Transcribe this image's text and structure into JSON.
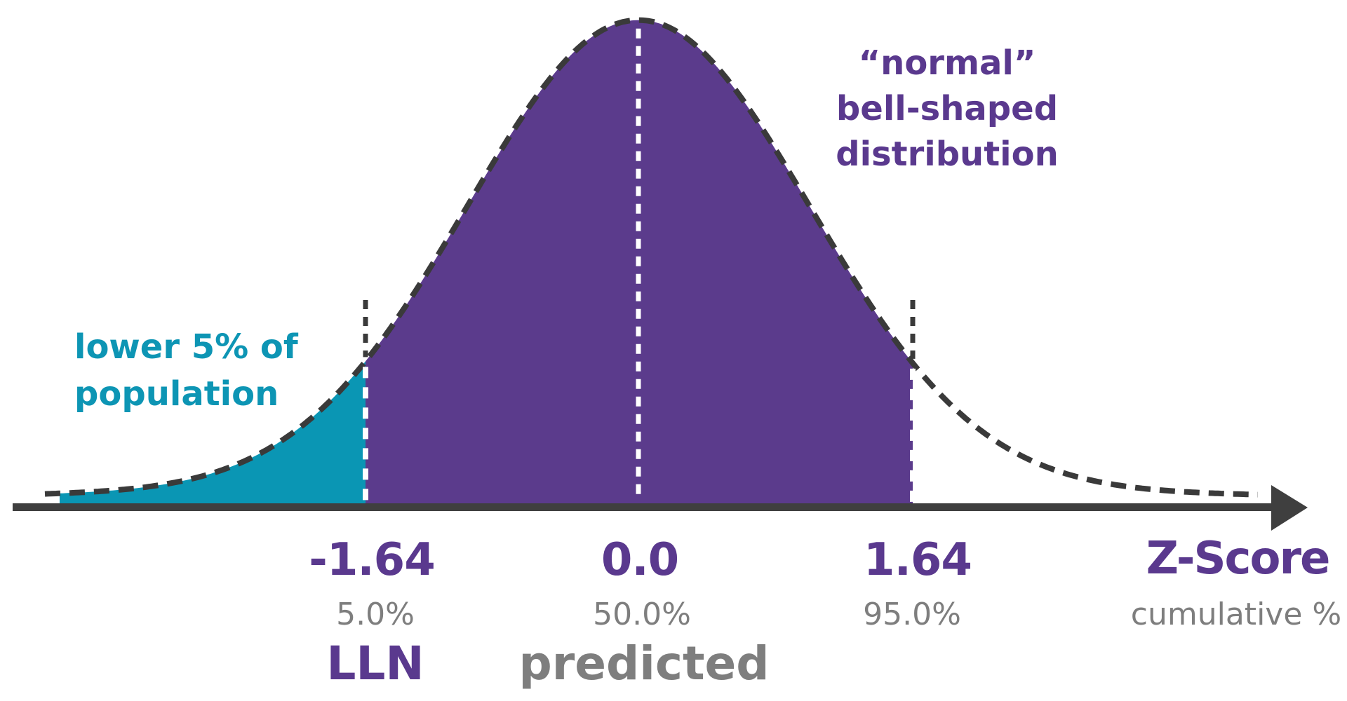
{
  "chart_data": {
    "type": "area",
    "title": "normal bell-shaped distribution with lower 5% tail shaded",
    "xlabel": "Z-Score",
    "xlabel_sub": "cumulative %",
    "grid": false,
    "legend": "none",
    "x_axis": {
      "kind": "z-score",
      "range_shown_z": [
        -3.5,
        3.7
      ],
      "arrow": "right"
    },
    "curve": {
      "shape": "normal-distribution",
      "mean_z": 0,
      "sd_z": 1,
      "outline_style": "dashed",
      "outline_color": "#3a3a3a"
    },
    "ticks": [
      {
        "z": "-1.64",
        "cumulative_pct": "5.0%",
        "label": "LLN"
      },
      {
        "z": "0.0",
        "cumulative_pct": "50.0%",
        "label": "predicted"
      },
      {
        "z": "1.64",
        "cumulative_pct": "95.0%",
        "label": ""
      }
    ],
    "axis_title": {
      "z": "Z-Score",
      "pct": "cumulative %"
    },
    "regions": [
      {
        "name": "lower-tail",
        "z_range": [
          -3.44,
          -1.64
        ],
        "area_pct": 5,
        "fill": "#0a96b4"
      },
      {
        "name": "central",
        "z_range": [
          -1.64,
          1.64
        ],
        "area_pct": 90,
        "fill": "#5b3b8c"
      }
    ],
    "guide_lines": [
      {
        "at_z": -1.64,
        "style": "dashed",
        "color_inside_fill": "#ffffff",
        "color_above_curve": "#3a3a3a"
      },
      {
        "at_z": 0.0,
        "style": "dashed",
        "color_inside_fill": "#ffffff"
      },
      {
        "at_z": 1.64,
        "style": "dashed",
        "color_inside_fill": "#ffffff",
        "color_above_curve": "#3a3a3a"
      }
    ],
    "annotations": {
      "lower_tail": {
        "line1": "lower 5% of",
        "line2": "population",
        "color": "#0d95b4"
      },
      "distribution": {
        "line1": "“normal”",
        "line2": "bell-shaped",
        "line3": "distribution",
        "color": "#5a398e"
      }
    },
    "colors": {
      "central_fill": "#5b3b8c",
      "tail_fill": "#0a96b4",
      "outline": "#3a3a3a",
      "axis": "#3f3f3f",
      "guide_white": "#ffffff",
      "purple_text": "#5a398e",
      "gray_text": "#7e7e7e",
      "teal_text": "#0d95b4"
    }
  }
}
